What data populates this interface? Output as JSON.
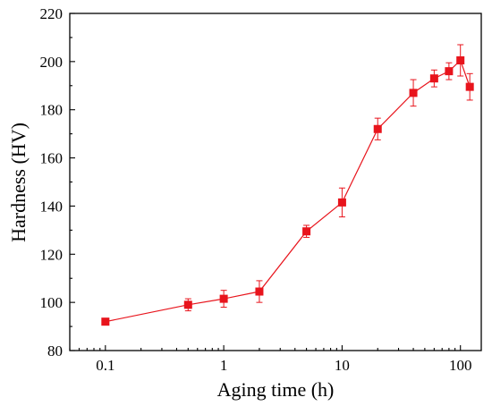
{
  "chart_data": {
    "type": "scatter",
    "xlabel": "Aging time (h)",
    "ylabel": "Hardness (HV)",
    "x_scale": "log",
    "xlim": [
      0.05,
      150
    ],
    "ylim": [
      80,
      220
    ],
    "x_ticks": [
      0.1,
      1,
      10,
      100
    ],
    "x_tick_labels": [
      "0.1",
      "1",
      "10",
      "100"
    ],
    "y_ticks": [
      80,
      100,
      120,
      140,
      160,
      180,
      200,
      220
    ],
    "y_tick_labels": [
      "80",
      "100",
      "120",
      "140",
      "160",
      "180",
      "200",
      "220"
    ],
    "grid": false,
    "legend": "none",
    "series": [
      {
        "color": "#e8141c",
        "marker": "square",
        "line": true,
        "x": [
          0.1,
          0.5,
          1,
          2,
          5,
          10,
          20,
          40,
          60,
          80,
          100,
          120
        ],
        "y": [
          92,
          99,
          101.5,
          104.5,
          129.5,
          141.5,
          172,
          187,
          193,
          196,
          200.5,
          189.5
        ],
        "error": [
          0,
          2.5,
          3.5,
          4.5,
          2.5,
          6,
          4.5,
          5.5,
          3.5,
          3.5,
          6.5,
          5.5
        ]
      }
    ]
  }
}
